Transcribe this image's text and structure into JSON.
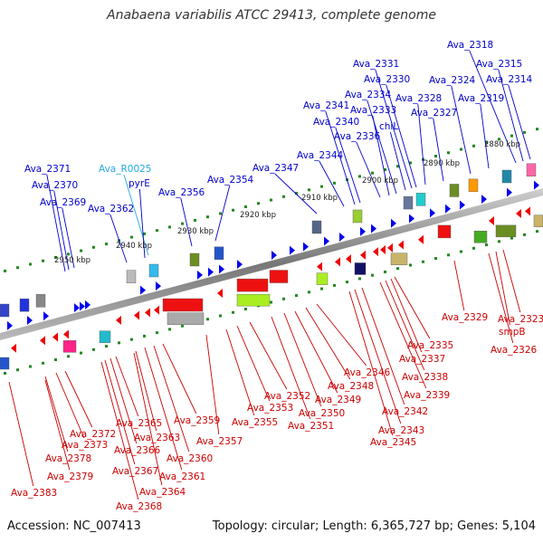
{
  "title": "Anabaena variabilis ATCC 29413, complete genome",
  "footer": {
    "accession": "Accession: NC_007413",
    "summary": "Topology: circular; Length: 6,365,727 bp; Genes: 5,104"
  },
  "colors": {
    "forward_label": "#0000cc",
    "reverse_label": "#cc0000",
    "rna_label": "#22aadd",
    "forward_arrow": "#0000ee",
    "reverse_arrow": "#ee0000",
    "backbone": "#888888"
  },
  "kbp_ticks": [
    "2950 kbp",
    "2940 kbp",
    "2930 kbp",
    "2920 kbp",
    "2910 kbp",
    "2900 kbp",
    "2890 kbp",
    "2880 kbp"
  ],
  "forward_genes": [
    "Ava_2371",
    "Ava_2370",
    "Ava_2369",
    "Ava_2362",
    "Ava_R0025",
    "pyrE",
    "Ava_2356",
    "Ava_2354",
    "Ava_2347",
    "Ava_2344",
    "Ava_2341",
    "Ava_2340",
    "Ava_2336",
    "Ava_2333",
    "Ava_2334",
    "Ava_2331",
    "Ava_2330",
    "chlL",
    "Ava_2328",
    "Ava_2327",
    "Ava_2324",
    "Ava_2319",
    "Ava_2318",
    "Ava_2315",
    "Ava_2314"
  ],
  "reverse_genes": [
    "Ava_2383",
    "Ava_2379",
    "Ava_2378",
    "Ava_2373",
    "Ava_2372",
    "Ava_2368",
    "Ava_2367",
    "Ava_2366",
    "Ava_2365",
    "Ava_2364",
    "Ava_2363",
    "Ava_2361",
    "Ava_2360",
    "Ava_2359",
    "Ava_2357",
    "Ava_2355",
    "Ava_2353",
    "Ava_2352",
    "Ava_2351",
    "Ava_2350",
    "Ava_2349",
    "Ava_2348",
    "Ava_2346",
    "Ava_2345",
    "Ava_2343",
    "Ava_2342",
    "Ava_2339",
    "Ava_2338",
    "Ava_2337",
    "Ava_2335",
    "Ava_2329",
    "Ava_2326",
    "smpB",
    "Ava_2323"
  ]
}
